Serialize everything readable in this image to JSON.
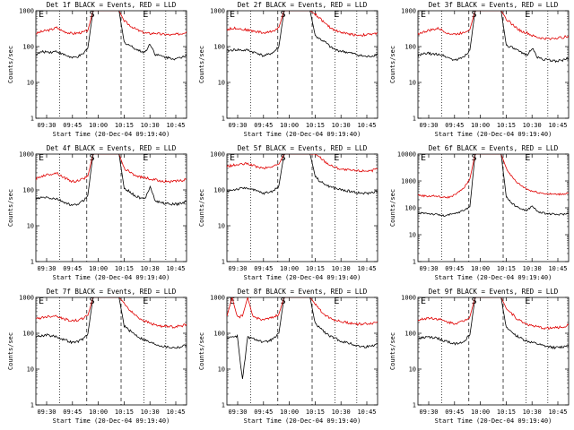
{
  "chart_data": [
    {
      "type": "line",
      "title": "Det 1f BLACK = Events, RED = LLD",
      "xlabel": "Start Time (20-Dec-04 09:19:40)",
      "ylabel": "Counts/sec",
      "xticks": [
        "09:30",
        "09:45",
        "10:00",
        "10:15",
        "10:30",
        "10:45"
      ],
      "yticks": [
        "1",
        "10",
        "100",
        "1000"
      ],
      "ylim": [
        1,
        1000
      ],
      "yscale": "log",
      "markers": [
        "E",
        "S",
        "E"
      ],
      "series": [
        {
          "color": "#e00000",
          "values": [
            230,
            260,
            280,
            300,
            340,
            280,
            250,
            230,
            240,
            250,
            280,
            1000,
            1000,
            1000,
            1000,
            1000,
            1000,
            520,
            400,
            320,
            270,
            240,
            230,
            240,
            220,
            220,
            210,
            220,
            230,
            260
          ]
        },
        {
          "color": "#000000",
          "values": [
            60,
            70,
            72,
            70,
            75,
            62,
            56,
            48,
            52,
            60,
            90,
            1000,
            1000,
            1000,
            1000,
            1000,
            1000,
            130,
            110,
            90,
            75,
            70,
            120,
            60,
            55,
            50,
            48,
            45,
            50,
            60
          ]
        }
      ]
    },
    {
      "type": "line",
      "title": "Det 2f BLACK = Events, RED = LLD",
      "xlabel": "Start Time (20-Dec-04 09:19:40)",
      "ylabel": "Counts/sec",
      "xticks": [
        "09:30",
        "09:45",
        "10:00",
        "10:15",
        "10:30",
        "10:45"
      ],
      "yticks": [
        "1",
        "10",
        "100",
        "1000"
      ],
      "ylim": [
        1,
        1000
      ],
      "yscale": "log",
      "markers": [
        "E",
        "S",
        "E"
      ],
      "series": [
        {
          "color": "#e00000",
          "values": [
            300,
            320,
            330,
            300,
            290,
            270,
            260,
            240,
            250,
            280,
            340,
            1000,
            1000,
            1000,
            1000,
            1000,
            1000,
            800,
            600,
            420,
            330,
            280,
            250,
            230,
            220,
            210,
            210,
            215,
            220,
            240
          ]
        },
        {
          "color": "#000000",
          "values": [
            75,
            80,
            82,
            78,
            80,
            70,
            65,
            55,
            60,
            70,
            100,
            1000,
            1000,
            1000,
            1000,
            1000,
            1000,
            200,
            160,
            130,
            95,
            80,
            75,
            70,
            65,
            60,
            55,
            52,
            55,
            62
          ]
        }
      ]
    },
    {
      "type": "line",
      "title": "Det 3f BLACK = Events, RED = LLD",
      "xlabel": "Start Time (20-Dec-04 09:19:40)",
      "ylabel": "Counts/sec",
      "xticks": [
        "09:30",
        "09:45",
        "10:00",
        "10:15",
        "10:30",
        "10:45"
      ],
      "yticks": [
        "1",
        "10",
        "100",
        "1000"
      ],
      "ylim": [
        1,
        1000
      ],
      "yscale": "log",
      "markers": [
        "E",
        "S",
        "E"
      ],
      "series": [
        {
          "color": "#e00000",
          "values": [
            230,
            250,
            280,
            300,
            320,
            270,
            230,
            220,
            230,
            260,
            300,
            1000,
            1000,
            1000,
            1000,
            1000,
            1000,
            600,
            430,
            330,
            260,
            240,
            200,
            180,
            170,
            165,
            170,
            175,
            180,
            200
          ]
        },
        {
          "color": "#000000",
          "values": [
            55,
            62,
            65,
            60,
            62,
            55,
            48,
            42,
            45,
            55,
            80,
            1000,
            1000,
            1000,
            1000,
            1000,
            1000,
            110,
            95,
            80,
            65,
            60,
            90,
            50,
            45,
            42,
            40,
            40,
            42,
            48
          ]
        }
      ]
    },
    {
      "type": "line",
      "title": "Det 4f BLACK = Events, RED = LLD",
      "xlabel": "Start Time (20-Dec-04 09:19:40)",
      "ylabel": "Counts/sec",
      "xticks": [
        "09:30",
        "09:45",
        "10:00",
        "10:15",
        "10:30",
        "10:45"
      ],
      "yticks": [
        "1",
        "10",
        "100",
        "1000"
      ],
      "ylim": [
        1,
        1000
      ],
      "yscale": "log",
      "markers": [
        "E",
        "S",
        "E"
      ],
      "series": [
        {
          "color": "#e00000",
          "values": [
            200,
            240,
            260,
            280,
            300,
            240,
            200,
            170,
            180,
            200,
            240,
            1000,
            1000,
            1000,
            1000,
            1000,
            1000,
            400,
            320,
            260,
            230,
            220,
            200,
            190,
            180,
            175,
            170,
            175,
            180,
            200
          ]
        },
        {
          "color": "#000000",
          "values": [
            55,
            60,
            62,
            58,
            56,
            48,
            42,
            36,
            40,
            48,
            70,
            1000,
            1000,
            1000,
            1000,
            1000,
            1000,
            110,
            90,
            70,
            60,
            55,
            130,
            48,
            45,
            42,
            40,
            40,
            42,
            48
          ]
        }
      ]
    },
    {
      "type": "line",
      "title": "Det 5f BLACK = Events, RED = LLD",
      "xlabel": "Start Time (20-Dec-04 09:19:40)",
      "ylabel": "Counts/sec",
      "xticks": [
        "09:30",
        "09:45",
        "10:00",
        "10:15",
        "10:30",
        "10:45"
      ],
      "yticks": [
        "1",
        "10",
        "100",
        "1000"
      ],
      "ylim": [
        1,
        1000
      ],
      "yscale": "log",
      "markers": [
        "E",
        "S",
        "E"
      ],
      "series": [
        {
          "color": "#e00000",
          "values": [
            450,
            480,
            500,
            520,
            540,
            480,
            430,
            400,
            420,
            460,
            520,
            1000,
            1000,
            1000,
            1000,
            1000,
            1000,
            1000,
            800,
            600,
            480,
            420,
            380,
            360,
            350,
            340,
            340,
            345,
            350,
            380
          ]
        },
        {
          "color": "#000000",
          "values": [
            90,
            100,
            105,
            110,
            115,
            100,
            90,
            80,
            85,
            95,
            130,
            1000,
            1000,
            1000,
            1000,
            1000,
            1000,
            240,
            170,
            140,
            120,
            110,
            100,
            95,
            90,
            85,
            80,
            80,
            85,
            95
          ]
        }
      ]
    },
    {
      "type": "line",
      "title": "Det 6f BLACK = Events, RED = LLD",
      "xlabel": "Start Time (20-Dec-04 09:19:40)",
      "ylabel": "Counts/sec",
      "xticks": [
        "09:30",
        "09:45",
        "10:00",
        "10:15",
        "10:30",
        "10:45"
      ],
      "yticks": [
        "1",
        "10",
        "100",
        "1000",
        "10000"
      ],
      "ylim": [
        1,
        10000
      ],
      "yscale": "log",
      "markers": [
        "E",
        "S",
        "E"
      ],
      "series": [
        {
          "color": "#e00000",
          "values": [
            300,
            280,
            270,
            280,
            260,
            240,
            250,
            300,
            400,
            600,
            1200,
            10000,
            10000,
            10000,
            10000,
            10000,
            10000,
            3000,
            1500,
            900,
            650,
            500,
            420,
            380,
            350,
            330,
            320,
            320,
            330,
            360
          ]
        },
        {
          "color": "#000000",
          "values": [
            60,
            65,
            62,
            58,
            55,
            50,
            55,
            60,
            70,
            85,
            110,
            10000,
            10000,
            10000,
            10000,
            10000,
            10000,
            260,
            150,
            110,
            90,
            80,
            120,
            72,
            65,
            60,
            58,
            56,
            58,
            62
          ]
        }
      ]
    },
    {
      "type": "line",
      "title": "Det 7f BLACK = Events, RED = LLD",
      "xlabel": "Start Time (20-Dec-04 09:19:40)",
      "ylabel": "Counts/sec",
      "xticks": [
        "09:30",
        "09:45",
        "10:00",
        "10:15",
        "10:30",
        "10:45"
      ],
      "yticks": [
        "1",
        "10",
        "100",
        "1000"
      ],
      "ylim": [
        1,
        1000
      ],
      "yscale": "log",
      "markers": [
        "E",
        "S",
        "E"
      ],
      "series": [
        {
          "color": "#e00000",
          "values": [
            250,
            270,
            290,
            300,
            310,
            260,
            240,
            220,
            230,
            260,
            310,
            1000,
            1000,
            1000,
            1000,
            1000,
            1000,
            700,
            450,
            330,
            260,
            220,
            190,
            170,
            160,
            155,
            150,
            155,
            160,
            180
          ]
        },
        {
          "color": "#000000",
          "values": [
            80,
            85,
            90,
            85,
            80,
            70,
            62,
            55,
            58,
            68,
            95,
            1000,
            1000,
            1000,
            1000,
            1000,
            1000,
            160,
            120,
            95,
            75,
            65,
            55,
            50,
            45,
            42,
            40,
            40,
            42,
            48
          ]
        }
      ]
    },
    {
      "type": "line",
      "title": "Det 8f BLACK = Events, RED = LLD",
      "xlabel": "Start Time (20-Dec-04 09:19:40)",
      "ylabel": "Counts/sec",
      "xticks": [
        "09:30",
        "09:45",
        "10:00",
        "10:15",
        "10:30",
        "10:45"
      ],
      "yticks": [
        "1",
        "10",
        "100",
        "1000"
      ],
      "ylim": [
        1,
        1000
      ],
      "yscale": "log",
      "markers": [
        "E",
        "S",
        "E"
      ],
      "series": [
        {
          "color": "#e00000",
          "values": [
            300,
            1000,
            280,
            300,
            1000,
            290,
            260,
            240,
            250,
            280,
            340,
            1000,
            1000,
            1000,
            1000,
            1000,
            1000,
            650,
            430,
            320,
            260,
            230,
            210,
            200,
            190,
            180,
            180,
            185,
            190,
            210
          ]
        },
        {
          "color": "#000000",
          "values": [
            75,
            80,
            82,
            5,
            78,
            70,
            65,
            55,
            60,
            70,
            100,
            1000,
            1000,
            1000,
            1000,
            1000,
            1000,
            180,
            140,
            100,
            80,
            70,
            60,
            55,
            50,
            45,
            42,
            42,
            45,
            52
          ]
        }
      ]
    },
    {
      "type": "line",
      "title": "Det 9f BLACK = Events, RED = LLD",
      "xlabel": "Start Time (20-Dec-04 09:19:40)",
      "ylabel": "Counts/sec",
      "xticks": [
        "09:30",
        "09:45",
        "10:00",
        "10:15",
        "10:30",
        "10:45"
      ],
      "yticks": [
        "1",
        "10",
        "100",
        "1000"
      ],
      "ylim": [
        1,
        1000
      ],
      "yscale": "log",
      "markers": [
        "E",
        "S",
        "E"
      ],
      "series": [
        {
          "color": "#e00000",
          "values": [
            230,
            250,
            270,
            260,
            250,
            220,
            200,
            190,
            200,
            230,
            290,
            1000,
            1000,
            1000,
            1000,
            1000,
            1000,
            500,
            360,
            260,
            210,
            180,
            160,
            150,
            140,
            140,
            140,
            145,
            150,
            170
          ]
        },
        {
          "color": "#000000",
          "values": [
            70,
            75,
            78,
            75,
            70,
            62,
            56,
            50,
            54,
            62,
            90,
            1000,
            1000,
            1000,
            1000,
            1000,
            1000,
            140,
            110,
            85,
            70,
            60,
            55,
            50,
            45,
            42,
            40,
            40,
            42,
            48
          ]
        }
      ]
    }
  ]
}
